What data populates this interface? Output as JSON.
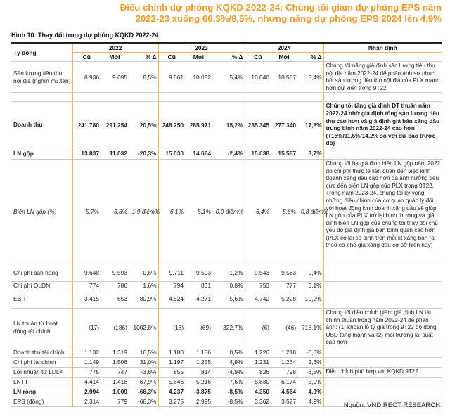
{
  "title": "Điều chỉnh dự phóng KQKD 2022-24: Chúng tôi giảm dự phóng EPS năm 2022-23 xuống 66,3%/8,5%, nhưng nâng dự phóng EPS 2024 lên 4,9%",
  "caption": "Hình 10: Thay đổi trong dự phóng KQKD 2022-24",
  "header": {
    "unit": "Tỷ đồng",
    "years": [
      "2022",
      "2023",
      "2024"
    ],
    "sub": [
      "Cũ",
      "Mới",
      "% Δ"
    ],
    "notes": "Nhận định"
  },
  "rows": [
    {
      "label": "Sản lượng tiêu thụ nội địa (nghìn m3.tấn)",
      "values": [
        "8.936",
        "9.695",
        "8,5%",
        "9.561",
        "10.082",
        "5,4%",
        "10.040",
        "10.587",
        "5,4%"
      ],
      "note": "Chúng tôi nâng giả định sản lượng tiêu thụ nội địa năm 2022-24 để phản ánh sự phục hồi sản lượng tiêu thụ nội địa của PLX mạnh hơn dự kiến trong 9T22"
    },
    {
      "label": "",
      "values": [
        "",
        "",
        "",
        "",
        "",
        "",
        "",
        "",
        ""
      ],
      "note": ""
    },
    {
      "label": "Doanh thu",
      "bold": true,
      "values": [
        "241.780",
        "291.254",
        "20,5%",
        "248.250",
        "285.971",
        "15,2%",
        "235.345",
        "277.340",
        "17,8%"
      ],
      "note": "Chúng tôi tăng giả định DT thuần năm 2022-24 nhờ giả định tổng sản lượng tiêu thụ cao hơn và giả định giá bán xăng dầu trung bình năm 2022-24 cao hơn (+15%/11,5%/14,2% so với dự báo trước đó)"
    },
    {
      "label": "LN gộp",
      "bold": true,
      "values": [
        "13.837",
        "11.032",
        "-20,3%",
        "15.030",
        "14.664",
        "-2,4%",
        "15.038",
        "15.587",
        "3,7%"
      ],
      "note": ""
    },
    {
      "label": "Biên LN gộp (%)",
      "italic": true,
      "values": [
        "5,7%",
        "3,8%",
        "-1,9 điểm%",
        "6,1%",
        "5,1%",
        "-0,9 điểm%",
        "6,4%",
        "5,6%",
        "-0,8 điểm%"
      ],
      "note": "Chúng tôi hạ giả định biên LN gộp năm 2022 do chi phí thực tế liên quan đến việc kinh doanh xăng dầu cao hơn đã ảnh hưởng tiêu cực đến biên LN gộp của PLX trong 9T22. Trong năm 2023-24, chúng tôi kỳ vọng những điều chỉnh của cơ quan quản lý đối với hoạt động kinh doanh xăng dầu sẽ giúp LN gộp của PLX trở lại bình thường và giả định biên LN gộp của chúng tôi thay đổi chủ yếu do giả định giá bán bình quân cao hơn (PLX có lãi cố định trên mỗi lít xăng bán ra theo cơ chế giá xăng dầu cơ sở hiện nay)"
    },
    {
      "label": "Chi phí bán hàng",
      "values": [
        "9.648",
        "9.593",
        "-0,6%",
        "9.711",
        "9.593",
        "-1,2%",
        "9.543",
        "9.583",
        "0,4%"
      ],
      "note": ""
    },
    {
      "label": "Chi phí QLDN",
      "values": [
        "774",
        "786",
        "1,6%",
        "794",
        "801",
        "0,8%",
        "753",
        "777",
        "3,1%"
      ],
      "note": ""
    },
    {
      "label": "EBIT",
      "values": [
        "3.415",
        "653",
        "-80,9%",
        "4.524",
        "4.271",
        "-5,6%",
        "4.742",
        "5.228",
        "10,2%"
      ],
      "note": ""
    },
    {
      "label": "LN thuần từ hoạt động tài chính",
      "values": [
        "(17)",
        "(186)",
        "1002,8%",
        "(16)",
        "(69)",
        "322,7%",
        "(6)",
        "(46)",
        "718,1%"
      ],
      "note": "Chúng tôi điều chỉnh giảm giả định LN tài chính thuần trong năm 2022-24 để phản ánh: (1) khoản lỗ tỷ giá trong 9T22 do đồng USD tăng mạnh và (2) môi trường lãi suất cao hơn"
    },
    {
      "label": "Doanh thu tài chính",
      "values": [
        "1.132",
        "1.319",
        "16,5%",
        "1.180",
        "1.186",
        "0,5%",
        "1.226",
        "1.218",
        "-0,6%"
      ],
      "note": ""
    },
    {
      "label": "Chi phí tài chính",
      "values": [
        "1.149",
        "1.506",
        "31,0%",
        "1.197",
        "1.255",
        "4,9%",
        "1.231",
        "1.264",
        "2,6%"
      ],
      "note": ""
    },
    {
      "label": "Lợi nhuận từ LDLK",
      "values": [
        "775",
        "747",
        "-3,6%",
        "855",
        "814",
        "-4,9%",
        "826",
        "798",
        "-3,5%"
      ],
      "note": "Điều chỉnh phù hợp với KQKD 9T22"
    },
    {
      "label": "LNTT",
      "values": [
        "4.414",
        "1.418",
        "-67,9%",
        "5.646",
        "5.216",
        "-7,6%",
        "5.830",
        "6.174",
        "5,9%"
      ],
      "note": ""
    },
    {
      "label": "LN ròng",
      "bold": true,
      "values": [
        "2.994",
        "1.009",
        "-66,3%",
        "4.237",
        "3.875",
        "-8,5%",
        "4.350",
        "4.564",
        "4,9%"
      ],
      "note": ""
    },
    {
      "label": "EPS (đồng)",
      "values": [
        "2.314",
        "779",
        "-66,3%",
        "3.275",
        "2.995",
        "-8,5%",
        "3.362",
        "3.527",
        "4,9%"
      ],
      "note": ""
    }
  ],
  "source": "Nguồn: VNDIRECT RESEARCH",
  "colors": {
    "accent": "#f39a2b",
    "divider": "#f5b560"
  }
}
